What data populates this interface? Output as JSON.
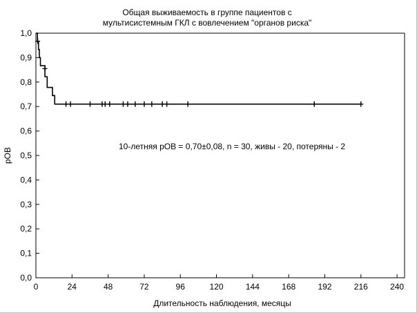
{
  "chart_data": {
    "type": "line",
    "title_line1": "Общая выживаемость в группе пациентов с",
    "title_line2": "мультисистемным ГКЛ с вовлечением \"органов риска\"",
    "xlabel": "Длительность наблюдения, месяцы",
    "ylabel": "pОВ",
    "xlim": [
      0,
      245
    ],
    "ylim": [
      0,
      1.0
    ],
    "x_ticks": [
      0,
      24,
      48,
      72,
      96,
      120,
      144,
      168,
      192,
      216,
      240
    ],
    "x_tick_labels": [
      "0",
      "24",
      "48",
      "72",
      "96",
      "120",
      "144",
      "168",
      "192",
      "216",
      "240"
    ],
    "y_ticks": [
      0,
      0.1,
      0.2,
      0.3,
      0.4,
      0.5,
      0.6,
      0.7,
      0.8,
      0.9,
      1.0
    ],
    "y_tick_labels": [
      "0,0",
      "0,1",
      "0,2",
      "0,3",
      "0,4",
      "0,5",
      "0,6",
      "0,7",
      "0,8",
      "0,9",
      "1,0"
    ],
    "annotation": "10-летняя pОВ = 0,70±0,08, n = 30, живы - 20, потеряны - 2",
    "grid": false,
    "series": [
      {
        "steps": [
          [
            0,
            1.0
          ],
          [
            1,
            0.967
          ],
          [
            1.7,
            0.933
          ],
          [
            2.3,
            0.9
          ],
          [
            3,
            0.867
          ],
          [
            6,
            0.822
          ],
          [
            7.5,
            0.778
          ],
          [
            11,
            0.745
          ],
          [
            12.5,
            0.71
          ],
          [
            216,
            0.71
          ]
        ],
        "censored": [
          [
            1.2,
            0.967
          ],
          [
            6,
            0.855
          ],
          [
            20,
            0.71
          ],
          [
            23,
            0.71
          ],
          [
            36,
            0.71
          ],
          [
            44,
            0.71
          ],
          [
            46,
            0.71
          ],
          [
            49,
            0.71
          ],
          [
            58,
            0.71
          ],
          [
            61,
            0.71
          ],
          [
            66,
            0.71
          ],
          [
            72,
            0.71
          ],
          [
            77,
            0.71
          ],
          [
            84,
            0.71
          ],
          [
            87,
            0.71
          ],
          [
            101,
            0.71
          ],
          [
            185,
            0.71
          ],
          [
            216,
            0.71
          ]
        ]
      }
    ]
  }
}
